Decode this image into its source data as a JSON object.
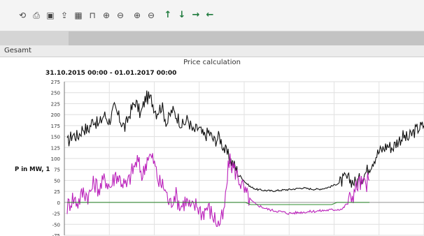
{
  "toolbar": {
    "buttons": [
      {
        "name": "refresh-icon",
        "glyph": "⟲"
      },
      {
        "name": "print-icon",
        "glyph": "⎙"
      },
      {
        "name": "save-icon",
        "glyph": "▣"
      },
      {
        "name": "export-icon",
        "glyph": "⇪"
      },
      {
        "name": "table-icon",
        "glyph": "▦"
      },
      {
        "name": "step-chart-icon",
        "glyph": "⊓"
      },
      {
        "name": "zoom-in-icon",
        "glyph": "⊕"
      },
      {
        "name": "zoom-out-icon",
        "glyph": "⊖"
      },
      {
        "name": "zoom-x-in-icon",
        "glyph": "⊕"
      },
      {
        "name": "zoom-x-out-icon",
        "glyph": "⊖"
      },
      {
        "name": "arrow-up-icon",
        "glyph": "↑"
      },
      {
        "name": "arrow-down-icon",
        "glyph": "↓"
      },
      {
        "name": "arrow-right-icon",
        "glyph": "→"
      },
      {
        "name": "arrow-left-icon",
        "glyph": "←"
      }
    ]
  },
  "tab_label": "Gesamt",
  "chart_title": "Price calculation",
  "chart_data": {
    "type": "line",
    "title": "Price calculation",
    "date_range": "31.10.2015 00:00 - 01.01.2017 00:00",
    "ylabel": "P in MW, 1",
    "ylim": [
      -75,
      275
    ],
    "yticks": [
      "275",
      "250",
      "225",
      "200",
      "175",
      "150",
      "125",
      "100",
      "75",
      "50",
      "25",
      "0",
      "-25",
      "-50",
      "-75"
    ],
    "grid": true,
    "series": [
      {
        "color": "#111111",
        "values": [
          135,
          155,
          150,
          170,
          165,
          190,
          175,
          200,
          185,
          215,
          190,
          170,
          205,
          230,
          200,
          240,
          235,
          205,
          220,
          180,
          210,
          195,
          175,
          190,
          160,
          170,
          150,
          160,
          140,
          150,
          120,
          100,
          80,
          60,
          45,
          35,
          30,
          28,
          27,
          26,
          27,
          28,
          29,
          30,
          32,
          33,
          31,
          30,
          30,
          32,
          35,
          40,
          45,
          55,
          50,
          45,
          55,
          70,
          90,
          110,
          120,
          130,
          125,
          140,
          150,
          145,
          160,
          170,
          175
        ]
      },
      {
        "color": "#bb22bb",
        "values": [
          -10,
          10,
          0,
          25,
          15,
          45,
          30,
          55,
          35,
          65,
          50,
          35,
          70,
          95,
          60,
          110,
          95,
          45,
          35,
          -5,
          20,
          -10,
          5,
          -15,
          -5,
          -25,
          -10,
          -30,
          -50,
          -30,
          95,
          75,
          50,
          20,
          5,
          -5,
          -10,
          -15,
          -18,
          -20,
          -22,
          -25,
          -24,
          -23,
          -22,
          -21,
          -20,
          -19,
          -18,
          -17,
          -16,
          -15,
          0,
          20,
          45,
          40,
          50
        ]
      },
      {
        "color": "#2e8b2e",
        "values": [
          0,
          0,
          0,
          0,
          0,
          0,
          0,
          0,
          0,
          0,
          0,
          0,
          0,
          0,
          0,
          0,
          0,
          0,
          0,
          0,
          0,
          0,
          0,
          0,
          0,
          0,
          0,
          0,
          0,
          0,
          0,
          0,
          0,
          0,
          -5,
          -5,
          -5,
          -5,
          -5,
          -5,
          -5,
          -5,
          -5,
          -5,
          -5,
          -5,
          -5,
          -5,
          -5,
          -5,
          0,
          0,
          0,
          0,
          0,
          0,
          0
        ]
      }
    ]
  }
}
